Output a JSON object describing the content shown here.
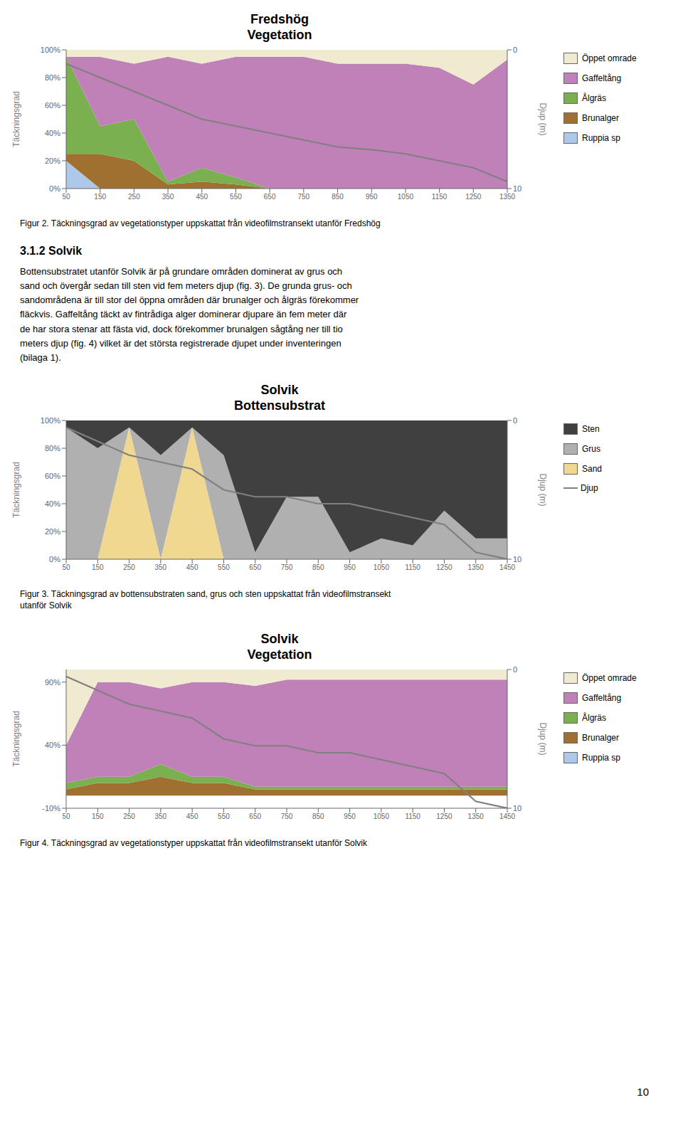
{
  "chart_data": [
    {
      "type": "area",
      "title": "Fredshög",
      "subtitle": "Vegetation",
      "stacked": true,
      "grid": false,
      "x": [
        50,
        150,
        250,
        350,
        450,
        550,
        650,
        750,
        850,
        950,
        1050,
        1150,
        1250,
        1350
      ],
      "xlim": [
        50,
        1350
      ],
      "xticks": [
        50,
        150,
        250,
        350,
        450,
        550,
        650,
        750,
        850,
        950,
        1050,
        1150,
        1250,
        1350
      ],
      "ylabel": "Täckningsgrad",
      "ylim": [
        0,
        100
      ],
      "yticks": [
        {
          "value": 0,
          "label": "0%"
        },
        {
          "value": 20,
          "label": "20%"
        },
        {
          "value": 40,
          "label": "40%"
        },
        {
          "value": 60,
          "label": "60%"
        },
        {
          "value": 80,
          "label": "80%"
        },
        {
          "value": 100,
          "label": "100%"
        }
      ],
      "y2label": "Djup (m)",
      "y2lim": [
        10,
        0
      ],
      "y2ticks": [
        0,
        10
      ],
      "series": [
        {
          "name": "Ruppia sp",
          "color": "#adc8e8",
          "values": [
            20,
            0,
            0,
            0,
            0,
            0,
            0,
            0,
            0,
            0,
            0,
            0,
            0,
            0
          ]
        },
        {
          "name": "Brunalger",
          "color": "#a07030",
          "values": [
            5,
            25,
            20,
            3,
            5,
            3,
            0,
            0,
            0,
            0,
            0,
            0,
            0,
            0
          ]
        },
        {
          "name": "Ålgräs",
          "color": "#7ab050",
          "values": [
            70,
            20,
            30,
            2,
            10,
            5,
            0,
            0,
            0,
            0,
            0,
            0,
            0,
            0
          ]
        },
        {
          "name": "Gaffeltång",
          "color": "#c080b8",
          "values": [
            0,
            50,
            40,
            90,
            75,
            87,
            95,
            95,
            90,
            90,
            90,
            87,
            75,
            93
          ]
        },
        {
          "name": "Öppet omrade",
          "color": "#f0ead0",
          "values": [
            5,
            5,
            10,
            5,
            10,
            5,
            5,
            5,
            10,
            10,
            10,
            13,
            25,
            7
          ]
        },
        {
          "type": "line",
          "axis": "y2",
          "color": "#808080",
          "values": [
            1,
            2,
            3,
            4,
            5,
            5.5,
            6,
            6.5,
            7,
            7.2,
            7.5,
            8,
            8.5,
            9.5
          ]
        }
      ],
      "annotations": [
        "Figur 2. Täckningsgrad av vegetationstyper uppskattat från videofilmstransekt utanför Fredshög"
      ]
    },
    {
      "type": "area",
      "title": "Solvik",
      "subtitle": "Bottensubstrat",
      "stacked": true,
      "grid": false,
      "x": [
        50,
        150,
        250,
        350,
        450,
        550,
        650,
        750,
        850,
        950,
        1050,
        1150,
        1250,
        1350,
        1450
      ],
      "xlim": [
        50,
        1450
      ],
      "xticks": [
        50,
        150,
        250,
        350,
        450,
        550,
        650,
        750,
        850,
        950,
        1050,
        1150,
        1250,
        1350,
        1450
      ],
      "ylabel": "Täckningsgrad",
      "ylim": [
        0,
        100
      ],
      "yticks": [
        {
          "value": 0,
          "label": "0%"
        },
        {
          "value": 20,
          "label": "20%"
        },
        {
          "value": 40,
          "label": "40%"
        },
        {
          "value": 60,
          "label": "60%"
        },
        {
          "value": 80,
          "label": "80%"
        },
        {
          "value": 100,
          "label": "100%"
        }
      ],
      "y2label": "Djup (m)",
      "y2lim": [
        10,
        0
      ],
      "y2ticks": [
        0,
        10
      ],
      "series": [
        {
          "name": "Sand",
          "color": "#f0d890",
          "values": [
            0,
            0,
            95,
            0,
            95,
            0,
            0,
            0,
            0,
            0,
            0,
            0,
            0,
            0,
            0
          ]
        },
        {
          "name": "Grus",
          "color": "#b0b0b0",
          "values": [
            95,
            80,
            0,
            75,
            0,
            75,
            5,
            45,
            45,
            5,
            15,
            10,
            35,
            15,
            15
          ]
        },
        {
          "name": "Sten",
          "color": "#404040",
          "values": [
            5,
            20,
            5,
            25,
            5,
            25,
            95,
            55,
            55,
            95,
            85,
            90,
            65,
            85,
            85
          ]
        },
        {
          "name": "Djup",
          "type": "line",
          "axis": "y2",
          "color": "#808080",
          "values": [
            0.5,
            1.5,
            2.5,
            3,
            3.5,
            5,
            5.5,
            5.5,
            6,
            6,
            6.5,
            7,
            7.5,
            9.5,
            10
          ]
        }
      ],
      "annotations": [
        "Figur 3. Täckningsgrad av bottensubstraten sand, grus och sten uppskattat från videofilmstransekt",
        "utanför Solvik"
      ]
    },
    {
      "type": "area",
      "title": "Solvik",
      "subtitle": "Vegetation",
      "stacked": true,
      "grid": false,
      "x": [
        50,
        150,
        250,
        350,
        450,
        550,
        650,
        750,
        850,
        950,
        1050,
        1150,
        1250,
        1350,
        1450
      ],
      "xlim": [
        50,
        1450
      ],
      "xticks": [
        50,
        150,
        250,
        350,
        450,
        550,
        650,
        750,
        850,
        950,
        1050,
        1150,
        1250,
        1350,
        1450
      ],
      "ylabel": "Täckningsgrad",
      "ylim": [
        -10,
        100
      ],
      "yticks": [
        {
          "value": -10,
          "label": "-10%"
        },
        {
          "value": 40,
          "label": "40%"
        },
        {
          "value": 90,
          "label": "90%"
        }
      ],
      "y2label": "Djup (m)",
      "y2lim": [
        10,
        0
      ],
      "y2ticks": [
        0,
        10
      ],
      "series": [
        {
          "name": "Ruppia sp",
          "color": "#adc8e8",
          "values": [
            0,
            0,
            0,
            0,
            0,
            0,
            0,
            0,
            0,
            0,
            0,
            0,
            0,
            0,
            0
          ]
        },
        {
          "name": "Brunalger",
          "color": "#a07030",
          "values": [
            5,
            10,
            10,
            15,
            10,
            10,
            5,
            5,
            5,
            5,
            5,
            5,
            5,
            5,
            5
          ]
        },
        {
          "name": "Ålgräs",
          "color": "#7ab050",
          "values": [
            5,
            5,
            5,
            10,
            5,
            5,
            2,
            2,
            2,
            2,
            2,
            2,
            2,
            2,
            2
          ]
        },
        {
          "name": "Gaffeltång",
          "color": "#c080b8",
          "values": [
            30,
            75,
            75,
            60,
            75,
            75,
            80,
            85,
            85,
            85,
            85,
            85,
            85,
            85,
            85
          ]
        },
        {
          "name": "Öppet omrade",
          "color": "#f0ead0",
          "values": [
            60,
            10,
            10,
            15,
            10,
            10,
            13,
            8,
            8,
            8,
            8,
            8,
            8,
            8,
            8
          ]
        },
        {
          "type": "line",
          "axis": "y2",
          "color": "#808080",
          "values": [
            0.5,
            1.5,
            2.5,
            3,
            3.5,
            5,
            5.5,
            5.5,
            6,
            6,
            6.5,
            7,
            7.5,
            9.5,
            10
          ]
        }
      ],
      "annotations": [
        "Figur 4. Täckningsgrad av vegetationstyper uppskattat från videofilmstransekt utanför Solvik"
      ]
    }
  ],
  "section_title": "3.1.2 Solvik",
  "section_text": [
    "Bottensubstratet utanför Solvik är på grundare områden dominerat av grus och",
    "sand och övergår sedan till sten vid fem meters djup (fig. 3). De grunda grus- och",
    "sandområdena är till stor del öppna områden där brunalger och ålgräs förekommer",
    "fläckvis. Gaffeltång täckt av fintrådiga alger dominerar djupare än fem meter där",
    "de har stora stenar att fästa vid, dock förekommer brunalgen sågtång ner till tio",
    "meters djup (fig. 4) vilket är det största registrerade djupet under inventeringen",
    "(bilaga 1)."
  ],
  "page_number": "10"
}
